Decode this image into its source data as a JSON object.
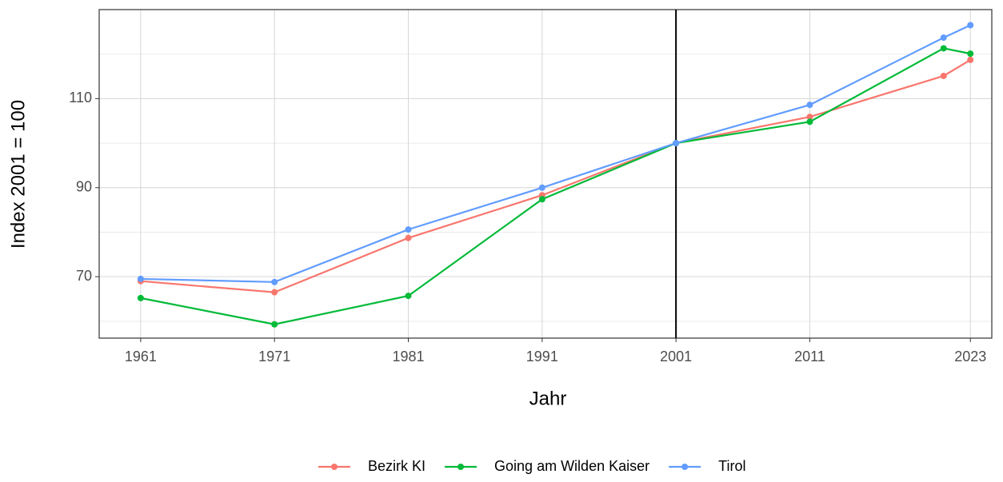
{
  "chart_data": {
    "type": "line",
    "x_label": "Jahr",
    "y_label": "Index 2001 = 100",
    "x": [
      1961,
      1971,
      1981,
      1991,
      2001,
      2011,
      2021,
      2023
    ],
    "series": [
      {
        "name": "Bezirk KI",
        "color": "#f8766d",
        "values": [
          69.0,
          66.5,
          78.7,
          88.3,
          100,
          105.9,
          115.1,
          118.7
        ]
      },
      {
        "name": "Going am Wilden Kaiser",
        "color": "#00ba38",
        "values": [
          65.2,
          59.3,
          65.7,
          87.4,
          100,
          104.8,
          121.3,
          120.1
        ]
      },
      {
        "name": "Tirol",
        "color": "#619cff",
        "values": [
          69.5,
          68.8,
          80.6,
          90.0,
          100,
          108.6,
          123.7,
          126.5
        ]
      }
    ],
    "xlim": [
      1957.9,
      2024.6
    ],
    "xticks": [
      1961,
      1971,
      1981,
      1991,
      2001,
      2011,
      2023
    ],
    "ylim": [
      56.2,
      130
    ],
    "yticks": [
      70,
      90,
      110
    ],
    "yminor": [
      60,
      80,
      100,
      120
    ],
    "vline": 2001,
    "grid": true,
    "legend": "bottom"
  }
}
